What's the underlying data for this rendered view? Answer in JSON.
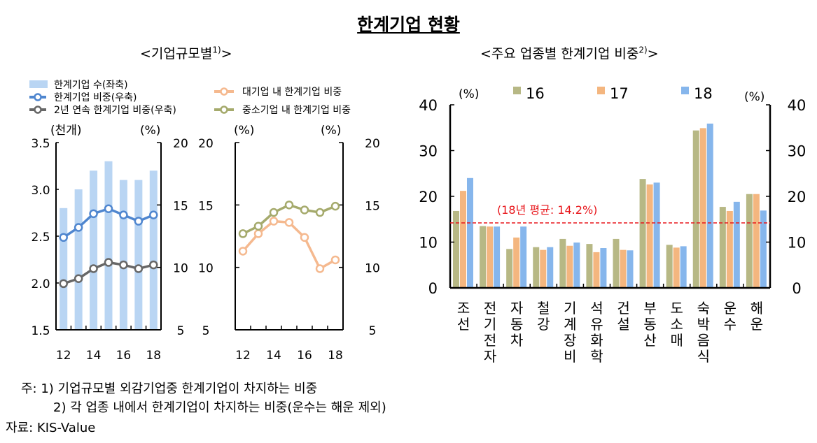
{
  "title": "한계기업 현황",
  "left_subtitle": "<기업규모별",
  "left_subtitle_sup": "1)",
  "left_subtitle_end": ">",
  "right_subtitle": "<주요 업종별 한계기업 비중",
  "right_subtitle_sup": "2)",
  "right_subtitle_end": ">",
  "notes": {
    "line1": "주: 1) 기업규모별 외감기업중 한계기업이 차지하는 비중",
    "line2": "2) 각 업종 내에서 한계기업이 차지하는 비중(운수는 해운 제외)",
    "source": "자료: KIS-Value"
  },
  "chart_data": [
    {
      "type": "bar+line",
      "categories": [
        "12",
        "13",
        "14",
        "15",
        "16",
        "17",
        "18"
      ],
      "xtick_labels": [
        "12",
        "14",
        "16",
        "18"
      ],
      "left_axis": {
        "unit": "(천개)",
        "ylim": [
          1.5,
          3.5
        ],
        "ticks": [
          "1.5",
          "2.0",
          "2.5",
          "3.0",
          "3.5"
        ]
      },
      "right_axis": {
        "unit": "(%)",
        "ylim": [
          5,
          20
        ],
        "ticks": [
          "5",
          "10",
          "15",
          "20"
        ]
      },
      "series": [
        {
          "name": "한계기업 수(좌축)",
          "kind": "bar",
          "axis": "left",
          "color": "#b9d5f3",
          "values": [
            2.8,
            3.0,
            3.2,
            3.3,
            3.1,
            3.1,
            3.2
          ]
        },
        {
          "name": "한계기업 비중(우축)",
          "kind": "line",
          "axis": "right",
          "color": "#4f86cf",
          "values": [
            12.4,
            13.2,
            14.3,
            14.7,
            14.2,
            13.7,
            14.2
          ]
        },
        {
          "name": "2년 연속 한계기업 비중(우축)",
          "kind": "line",
          "axis": "right",
          "color": "#676767",
          "values": [
            8.7,
            9.1,
            9.9,
            10.4,
            10.2,
            9.9,
            10.2
          ]
        }
      ],
      "grid": false
    },
    {
      "type": "line",
      "categories": [
        "12",
        "13",
        "14",
        "15",
        "16",
        "17",
        "18"
      ],
      "xtick_labels": [
        "12",
        "14",
        "16",
        "18"
      ],
      "left_axis": {
        "unit": "(%)",
        "ylim": [
          5,
          20
        ],
        "ticks": [
          "5",
          "10",
          "15",
          "20"
        ]
      },
      "right_axis": {
        "unit": "(%)",
        "ylim": [
          5,
          20
        ],
        "ticks": [
          "5",
          "10",
          "15",
          "20"
        ]
      },
      "series": [
        {
          "name": "대기업 내 한계기업 비중",
          "color": "#f5b98f",
          "values": [
            11.3,
            12.7,
            13.7,
            13.6,
            12.4,
            9.9,
            10.6
          ]
        },
        {
          "name": "중소기업 내 한계기업 비중",
          "color": "#a5aa6c",
          "values": [
            12.7,
            13.3,
            14.4,
            15.0,
            14.6,
            14.4,
            14.9
          ]
        }
      ],
      "grid": false
    },
    {
      "type": "bar",
      "categories": [
        "조선",
        "전기전자",
        "자동차",
        "철강",
        "기계장비",
        "석유화학",
        "건설",
        "부동산",
        "도소매",
        "숙박음식",
        "운수",
        "해운"
      ],
      "left_axis": {
        "unit": "(%)",
        "ylim": [
          0,
          40
        ],
        "ticks": [
          "0",
          "10",
          "20",
          "30",
          "40"
        ]
      },
      "right_axis": {
        "unit": "(%)",
        "ylim": [
          0,
          40
        ],
        "ticks": [
          "0",
          "10",
          "20",
          "30",
          "40"
        ]
      },
      "series": [
        {
          "name": "16",
          "color": "#b7b885",
          "values": [
            16.8,
            13.5,
            8.5,
            8.9,
            10.7,
            9.6,
            10.7,
            23.8,
            9.4,
            34.4,
            17.7,
            20.5
          ]
        },
        {
          "name": "17",
          "color": "#f4b67f",
          "values": [
            21.2,
            13.4,
            11.0,
            8.3,
            9.2,
            7.8,
            8.3,
            22.6,
            8.8,
            34.9,
            16.8,
            20.5
          ]
        },
        {
          "name": "18",
          "color": "#86b6ec",
          "values": [
            24.0,
            13.4,
            13.4,
            8.9,
            9.9,
            8.7,
            8.2,
            23.0,
            9.1,
            35.9,
            18.8,
            16.9
          ]
        }
      ],
      "reference_line": {
        "label": "(18년 평균: 14.2%)",
        "value": 14.2,
        "color": "#e8161b",
        "style": "dashed"
      },
      "legend": "top",
      "grid": false
    }
  ]
}
